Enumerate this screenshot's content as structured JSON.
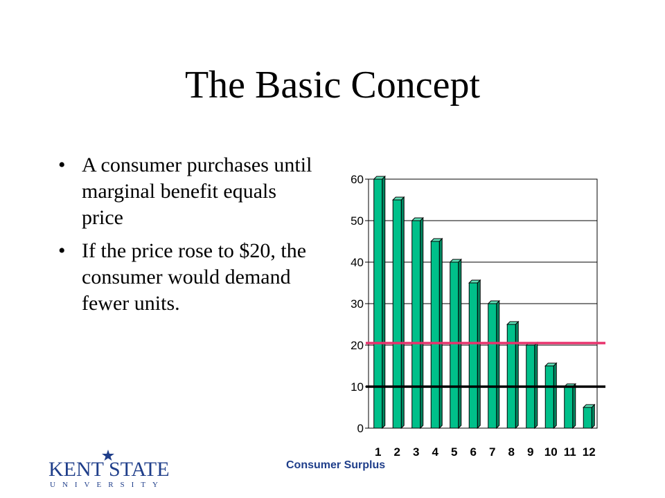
{
  "slide": {
    "title": "The Basic Concept",
    "bullets": [
      "A consumer purchases until marginal benefit equals price",
      "If the price rose to $20, the consumer would demand fewer units."
    ],
    "bullet_char": "•"
  },
  "footer": {
    "label": "Consumer Surplus",
    "logo_text": "KENT STATE",
    "logo_subtext": "UNIVERSITY"
  },
  "chart_data": {
    "type": "bar",
    "categories": [
      "1",
      "2",
      "3",
      "4",
      "5",
      "6",
      "7",
      "8",
      "9",
      "10",
      "11",
      "12"
    ],
    "values": [
      60,
      55,
      50,
      45,
      40,
      35,
      30,
      25,
      20,
      15,
      10,
      5
    ],
    "yticks": [
      "0",
      "10",
      "20",
      "30",
      "40",
      "50",
      "60"
    ],
    "ylim": [
      0,
      60
    ],
    "grid": true,
    "bar_color": "#00c08a",
    "reference_lines": [
      {
        "value": 20.5,
        "color": "#e8336d"
      },
      {
        "value": 10,
        "color": "#000000"
      }
    ]
  }
}
